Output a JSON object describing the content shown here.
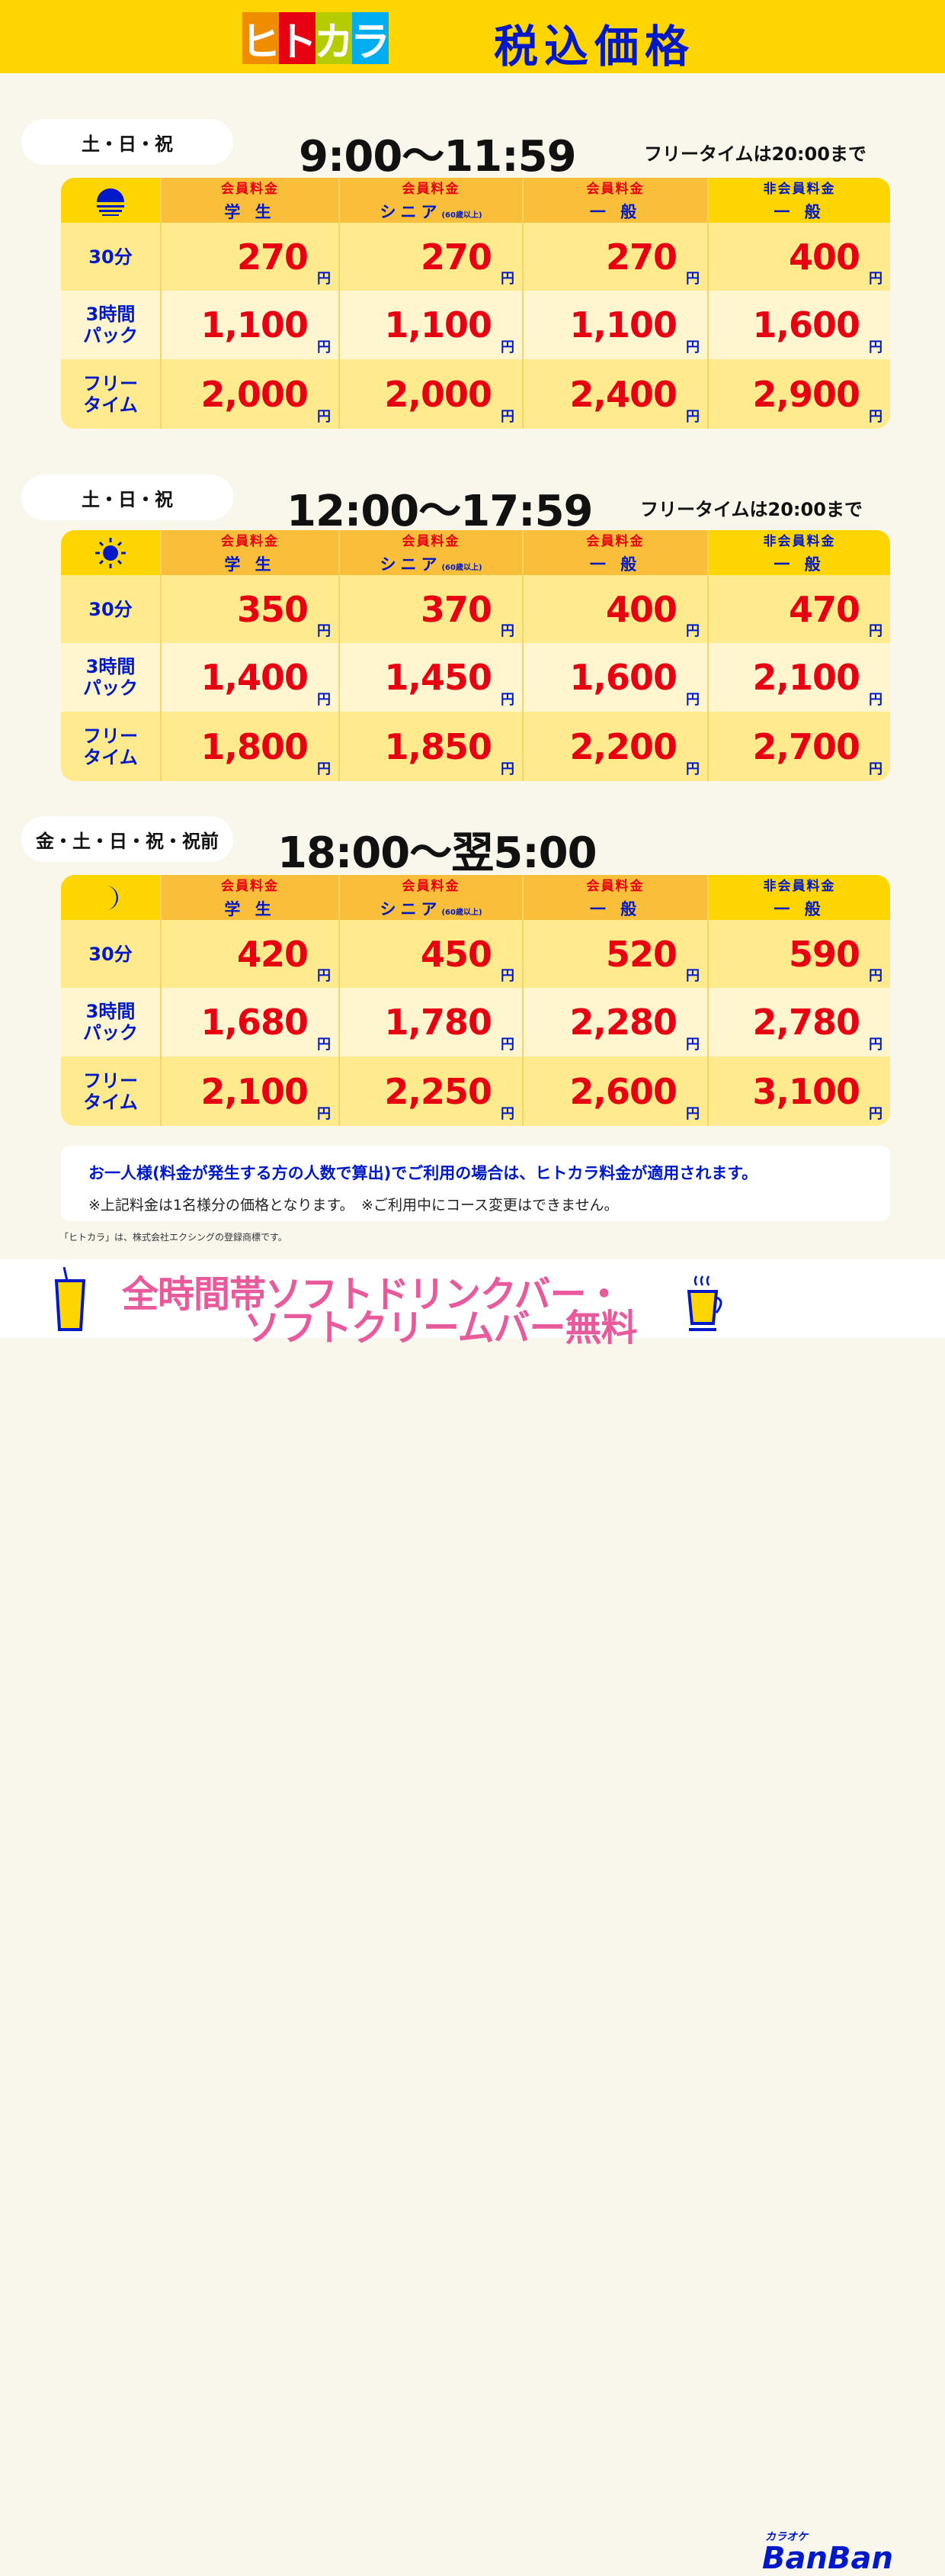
{
  "header": {
    "logo": [
      "ヒ",
      "ト",
      "カ",
      "ラ"
    ],
    "logo_colors": [
      "#F08C00",
      "#E60012",
      "#B5CC00",
      "#00AEEF"
    ],
    "title": "税込価格"
  },
  "colors": {
    "price": "#E60012",
    "label": "#0019C8",
    "header_bg": "#FFD500",
    "drink_text": "#E85A9B"
  },
  "columns": [
    {
      "top": "会員料金",
      "bottom": "学 生",
      "note": ""
    },
    {
      "top": "会員料金",
      "bottom": "シニア",
      "note": "(60歳以上)"
    },
    {
      "top": "会員料金",
      "bottom": "一 般",
      "note": ""
    },
    {
      "top": "非会員料金",
      "bottom": "一 般",
      "note": ""
    }
  ],
  "row_labels": [
    "30分",
    "3時間\nパック",
    "フリー\nタイム"
  ],
  "yen": "円",
  "sections": [
    {
      "days": "土・日・祝",
      "time": "9:00〜11:59",
      "free_note": "フリータイムは20:00まで",
      "icon": "sunset-icon",
      "prices": [
        [
          "270",
          "270",
          "270",
          "400"
        ],
        [
          "1,100",
          "1,100",
          "1,100",
          "1,600"
        ],
        [
          "2,000",
          "2,000",
          "2,400",
          "2,900"
        ]
      ]
    },
    {
      "days": "土・日・祝",
      "time": "12:00〜17:59",
      "free_note": "フリータイムは20:00まで",
      "icon": "sun-icon",
      "prices": [
        [
          "350",
          "370",
          "400",
          "470"
        ],
        [
          "1,400",
          "1,450",
          "1,600",
          "2,100"
        ],
        [
          "1,800",
          "1,850",
          "2,200",
          "2,700"
        ]
      ]
    },
    {
      "days": "金・土・日・祝・祝前",
      "time": "18:00〜翌5:00",
      "free_note": "",
      "icon": "moon-icon",
      "prices": [
        [
          "420",
          "450",
          "520",
          "590"
        ],
        [
          "1,680",
          "1,780",
          "2,280",
          "2,780"
        ],
        [
          "2,100",
          "2,250",
          "2,600",
          "3,100"
        ]
      ]
    }
  ],
  "notes": {
    "main": "お一人様(料金が発生する方の人数で算出)でご利用の場合は、ヒトカラ料金が適用されます。",
    "sub": "※上記料金は1名様分の価格となります。　※ご利用中にコース変更はできません。",
    "trademark": "「ヒトカラ」は、株式会社エクシングの登録商標です。"
  },
  "footer": {
    "line1": "全時間帯ソフトドリンクバー・",
    "line2": "ソフトクリームバー無料",
    "brand_small": "カラオケ",
    "brand": "BanBan"
  }
}
